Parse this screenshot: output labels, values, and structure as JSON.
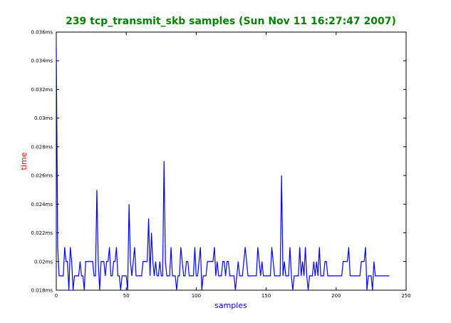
{
  "chart_data": {
    "type": "line",
    "title": "239 tcp_transmit_skb samples (Sun Nov 11 16:27:47 2007)",
    "xlabel": "samples",
    "ylabel": "time",
    "xlim": [
      0,
      250
    ],
    "ylim": [
      0.018,
      0.036
    ],
    "xticks": [
      0,
      50,
      100,
      150,
      200,
      250
    ],
    "xtick_labels": [
      "0",
      "50",
      "100",
      "150",
      "200",
      "250"
    ],
    "yticks": [
      0.018,
      0.02,
      0.022,
      0.024,
      0.026,
      0.028,
      0.03,
      0.032,
      0.034,
      0.036
    ],
    "ytick_labels": [
      "0.018ms",
      "0.02ms",
      "0.022ms",
      "0.024ms",
      "0.026ms",
      "0.028ms",
      "0.03ms",
      "0.032ms",
      "0.034ms",
      "0.036ms"
    ],
    "grid": false,
    "series": [
      {
        "color": "#0000ff",
        "values": [
          0.035,
          0.021,
          0.019,
          0.019,
          0.019,
          0.019,
          0.021,
          0.02,
          0.02,
          0.018,
          0.021,
          0.02,
          0.018,
          0.019,
          0.019,
          0.019,
          0.019,
          0.02,
          0.019,
          0.019,
          0.018,
          0.02,
          0.02,
          0.02,
          0.02,
          0.02,
          0.02,
          0.019,
          0.019,
          0.025,
          0.02,
          0.018,
          0.02,
          0.02,
          0.02,
          0.019,
          0.02,
          0.02,
          0.021,
          0.019,
          0.019,
          0.02,
          0.02,
          0.021,
          0.019,
          0.019,
          0.018,
          0.019,
          0.019,
          0.019,
          0.019,
          0.018,
          0.024,
          0.02,
          0.019,
          0.02,
          0.021,
          0.019,
          0.019,
          0.019,
          0.019,
          0.019,
          0.02,
          0.02,
          0.02,
          0.02,
          0.023,
          0.019,
          0.022,
          0.02,
          0.019,
          0.02,
          0.019,
          0.019,
          0.02,
          0.019,
          0.019,
          0.027,
          0.02,
          0.019,
          0.019,
          0.019,
          0.021,
          0.019,
          0.019,
          0.019,
          0.018,
          0.019,
          0.019,
          0.021,
          0.02,
          0.019,
          0.019,
          0.02,
          0.02,
          0.019,
          0.019,
          0.019,
          0.019,
          0.021,
          0.019,
          0.019,
          0.02,
          0.021,
          0.018,
          0.019,
          0.019,
          0.019,
          0.02,
          0.02,
          0.02,
          0.02,
          0.02,
          0.021,
          0.019,
          0.02,
          0.019,
          0.019,
          0.019,
          0.02,
          0.02,
          0.019,
          0.02,
          0.02,
          0.019,
          0.019,
          0.019,
          0.019,
          0.018,
          0.019,
          0.02,
          0.019,
          0.019,
          0.019,
          0.02,
          0.021,
          0.02,
          0.019,
          0.019,
          0.019,
          0.019,
          0.019,
          0.019,
          0.019,
          0.021,
          0.02,
          0.019,
          0.02,
          0.019,
          0.019,
          0.019,
          0.019,
          0.019,
          0.019,
          0.021,
          0.02,
          0.019,
          0.019,
          0.019,
          0.019,
          0.019,
          0.026,
          0.019,
          0.02,
          0.019,
          0.019,
          0.019,
          0.021,
          0.019,
          0.018,
          0.019,
          0.019,
          0.019,
          0.019,
          0.021,
          0.019,
          0.02,
          0.019,
          0.021,
          0.019,
          0.018,
          0.019,
          0.019,
          0.019,
          0.02,
          0.019,
          0.02,
          0.019,
          0.021,
          0.019,
          0.019,
          0.019,
          0.02,
          0.02,
          0.019,
          0.019,
          0.019,
          0.019,
          0.019,
          0.019,
          0.019,
          0.019,
          0.019,
          0.019,
          0.019,
          0.02,
          0.02,
          0.02,
          0.02,
          0.021,
          0.019,
          0.019,
          0.019,
          0.019,
          0.019,
          0.019,
          0.019,
          0.019,
          0.02,
          0.02,
          0.02,
          0.021,
          0.018,
          0.019,
          0.019,
          0.019,
          0.018,
          0.02,
          0.019,
          0.019,
          0.019,
          0.019,
          0.019,
          0.019,
          0.019,
          0.019,
          0.019,
          0.019,
          0.019
        ]
      }
    ]
  }
}
